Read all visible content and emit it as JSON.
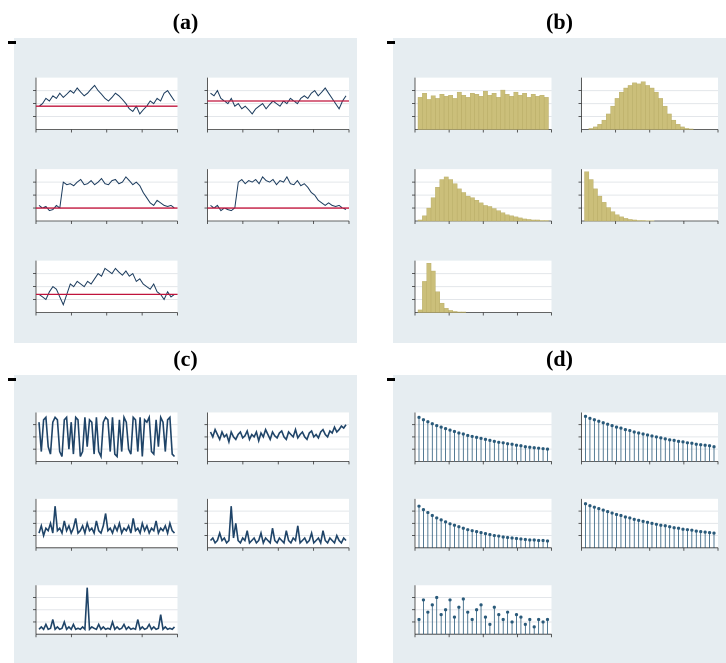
{
  "chart_data": [
    {
      "title": "(a)",
      "type": "line",
      "color": "#1a3a5c",
      "reference_color": "#c0143c",
      "ylim": [
        0,
        1
      ],
      "yticks": [
        0.25,
        0.5,
        0.75
      ],
      "grid": true,
      "series": [
        {
          "reference": 0.45,
          "values": [
            0.45,
            0.5,
            0.6,
            0.55,
            0.65,
            0.6,
            0.7,
            0.62,
            0.68,
            0.75,
            0.7,
            0.8,
            0.72,
            0.65,
            0.7,
            0.78,
            0.85,
            0.75,
            0.68,
            0.6,
            0.55,
            0.62,
            0.7,
            0.65,
            0.58,
            0.5,
            0.4,
            0.35,
            0.45,
            0.3,
            0.38,
            0.45,
            0.55,
            0.5,
            0.6,
            0.55,
            0.7,
            0.75,
            0.65,
            0.55
          ]
        },
        {
          "reference": 0.55,
          "values": [
            0.7,
            0.65,
            0.75,
            0.6,
            0.55,
            0.5,
            0.6,
            0.45,
            0.5,
            0.4,
            0.45,
            0.38,
            0.3,
            0.4,
            0.45,
            0.5,
            0.4,
            0.48,
            0.55,
            0.5,
            0.45,
            0.55,
            0.5,
            0.6,
            0.55,
            0.5,
            0.6,
            0.65,
            0.6,
            0.7,
            0.75,
            0.65,
            0.72,
            0.8,
            0.7,
            0.6,
            0.5,
            0.4,
            0.55,
            0.65
          ]
        },
        {
          "reference": 0.25,
          "values": [
            0.3,
            0.25,
            0.28,
            0.2,
            0.22,
            0.3,
            0.25,
            0.75,
            0.7,
            0.72,
            0.68,
            0.75,
            0.8,
            0.7,
            0.72,
            0.78,
            0.7,
            0.75,
            0.82,
            0.72,
            0.7,
            0.78,
            0.8,
            0.72,
            0.75,
            0.85,
            0.78,
            0.7,
            0.75,
            0.68,
            0.55,
            0.45,
            0.35,
            0.3,
            0.4,
            0.35,
            0.3,
            0.28,
            0.3,
            0.25
          ]
        },
        {
          "reference": 0.25,
          "values": [
            0.3,
            0.25,
            0.3,
            0.2,
            0.25,
            0.22,
            0.2,
            0.25,
            0.75,
            0.8,
            0.72,
            0.78,
            0.75,
            0.8,
            0.72,
            0.85,
            0.78,
            0.75,
            0.8,
            0.7,
            0.78,
            0.75,
            0.85,
            0.72,
            0.7,
            0.78,
            0.68,
            0.72,
            0.65,
            0.55,
            0.5,
            0.4,
            0.35,
            0.3,
            0.35,
            0.3,
            0.28,
            0.3,
            0.25,
            0.22
          ]
        },
        {
          "reference": 0.35,
          "values": [
            0.35,
            0.3,
            0.25,
            0.4,
            0.5,
            0.45,
            0.3,
            0.15,
            0.35,
            0.55,
            0.5,
            0.6,
            0.55,
            0.5,
            0.6,
            0.55,
            0.65,
            0.75,
            0.7,
            0.85,
            0.8,
            0.75,
            0.85,
            0.78,
            0.72,
            0.8,
            0.7,
            0.75,
            0.6,
            0.65,
            0.55,
            0.5,
            0.45,
            0.55,
            0.4,
            0.35,
            0.25,
            0.4,
            0.3,
            0.35
          ]
        }
      ]
    },
    {
      "title": "(b)",
      "type": "histogram",
      "color": "#cbbf7a",
      "ylim": [
        0,
        100
      ],
      "yticks": [
        25,
        50,
        75
      ],
      "grid": true,
      "series": [
        {
          "values": [
            62,
            70,
            58,
            65,
            60,
            68,
            64,
            66,
            60,
            72,
            66,
            62,
            70,
            68,
            64,
            74,
            66,
            70,
            62,
            76,
            68,
            64,
            72,
            66,
            70,
            62,
            68,
            64,
            66,
            62
          ]
        },
        {
          "values": [
            0,
            2,
            5,
            10,
            18,
            30,
            45,
            60,
            72,
            80,
            85,
            90,
            88,
            92,
            85,
            80,
            72,
            60,
            45,
            30,
            18,
            10,
            5,
            2,
            1,
            0,
            0,
            0,
            0,
            0
          ]
        },
        {
          "values": [
            2,
            10,
            25,
            45,
            65,
            80,
            85,
            80,
            72,
            62,
            55,
            48,
            45,
            40,
            35,
            30,
            28,
            24,
            20,
            16,
            12,
            10,
            8,
            6,
            4,
            3,
            2,
            2,
            1,
            1
          ]
        },
        {
          "values": [
            95,
            80,
            62,
            48,
            36,
            26,
            18,
            12,
            8,
            5,
            3,
            2,
            1,
            1,
            0.5,
            0.5,
            0,
            0,
            0,
            0,
            0,
            0,
            0,
            0,
            0,
            0,
            0,
            0,
            0,
            0
          ]
        },
        {
          "values": [
            5,
            60,
            95,
            80,
            40,
            18,
            8,
            4,
            2,
            1,
            1,
            0,
            0,
            0,
            0,
            0,
            0,
            0,
            0,
            0,
            0,
            0,
            0,
            0,
            0,
            0,
            0,
            0,
            0,
            0
          ]
        }
      ]
    },
    {
      "title": "(c)",
      "type": "line",
      "color": "#1f4468",
      "ylim": [
        0,
        1
      ],
      "yticks": [
        0.25,
        0.5,
        0.75
      ],
      "grid": true,
      "series": [
        {
          "values": [
            0.8,
            0.2,
            0.85,
            0.9,
            0.3,
            0.15,
            0.8,
            0.9,
            0.85,
            0.2,
            0.1,
            0.85,
            0.9,
            0.25,
            0.8,
            0.15,
            0.9,
            0.85,
            0.1,
            0.2,
            0.9,
            0.3,
            0.85,
            0.8,
            0.15,
            0.9,
            0.2,
            0.1,
            0.8,
            0.9,
            0.85,
            0.2,
            0.9,
            0.15,
            0.1,
            0.85,
            0.2,
            0.9,
            0.8,
            0.25,
            0.15,
            0.9,
            0.85,
            0.2,
            0.9,
            0.1,
            0.85,
            0.8,
            0.9,
            0.2,
            0.15,
            0.85,
            0.3,
            0.9,
            0.8,
            0.2,
            0.85,
            0.9,
            0.15,
            0.1
          ]
        },
        {
          "values": [
            0.6,
            0.5,
            0.65,
            0.55,
            0.45,
            0.6,
            0.5,
            0.55,
            0.4,
            0.6,
            0.5,
            0.45,
            0.55,
            0.6,
            0.48,
            0.52,
            0.62,
            0.45,
            0.55,
            0.5,
            0.6,
            0.42,
            0.58,
            0.5,
            0.65,
            0.55,
            0.45,
            0.6,
            0.52,
            0.48,
            0.58,
            0.62,
            0.5,
            0.45,
            0.6,
            0.55,
            0.5,
            0.65,
            0.48,
            0.55,
            0.6,
            0.5,
            0.45,
            0.58,
            0.62,
            0.5,
            0.55,
            0.48,
            0.6,
            0.65,
            0.55,
            0.5,
            0.62,
            0.58,
            0.7,
            0.6,
            0.65,
            0.72,
            0.68,
            0.75
          ]
        },
        {
          "values": [
            0.3,
            0.45,
            0.25,
            0.4,
            0.35,
            0.5,
            0.3,
            0.85,
            0.35,
            0.4,
            0.3,
            0.55,
            0.35,
            0.45,
            0.3,
            0.4,
            0.6,
            0.3,
            0.35,
            0.45,
            0.3,
            0.5,
            0.35,
            0.4,
            0.3,
            0.55,
            0.35,
            0.3,
            0.45,
            0.7,
            0.35,
            0.4,
            0.3,
            0.45,
            0.35,
            0.5,
            0.3,
            0.4,
            0.35,
            0.45,
            0.3,
            0.6,
            0.35,
            0.4,
            0.3,
            0.5,
            0.35,
            0.45,
            0.3,
            0.4,
            0.35,
            0.55,
            0.3,
            0.4,
            0.35,
            0.45,
            0.3,
            0.5,
            0.35,
            0.3
          ]
        },
        {
          "values": [
            0.15,
            0.2,
            0.1,
            0.15,
            0.3,
            0.15,
            0.2,
            0.1,
            0.15,
            0.85,
            0.2,
            0.5,
            0.15,
            0.1,
            0.2,
            0.15,
            0.35,
            0.1,
            0.15,
            0.2,
            0.1,
            0.15,
            0.3,
            0.1,
            0.2,
            0.15,
            0.1,
            0.4,
            0.15,
            0.1,
            0.2,
            0.15,
            0.1,
            0.35,
            0.15,
            0.1,
            0.2,
            0.15,
            0.45,
            0.1,
            0.15,
            0.2,
            0.1,
            0.15,
            0.3,
            0.1,
            0.15,
            0.2,
            0.1,
            0.35,
            0.15,
            0.1,
            0.2,
            0.15,
            0.1,
            0.25,
            0.15,
            0.1,
            0.2,
            0.15
          ]
        },
        {
          "values": [
            0.1,
            0.15,
            0.1,
            0.2,
            0.1,
            0.12,
            0.3,
            0.1,
            0.15,
            0.1,
            0.12,
            0.25,
            0.1,
            0.15,
            0.1,
            0.2,
            0.1,
            0.12,
            0.1,
            0.15,
            0.1,
            0.95,
            0.1,
            0.15,
            0.12,
            0.1,
            0.2,
            0.1,
            0.15,
            0.1,
            0.12,
            0.1,
            0.25,
            0.1,
            0.15,
            0.1,
            0.12,
            0.2,
            0.1,
            0.15,
            0.1,
            0.12,
            0.1,
            0.3,
            0.1,
            0.15,
            0.1,
            0.12,
            0.2,
            0.1,
            0.15,
            0.1,
            0.12,
            0.4,
            0.1,
            0.15,
            0.1,
            0.12,
            0.1,
            0.15
          ]
        }
      ]
    },
    {
      "title": "(d)",
      "type": "stem",
      "color": "#2a5a7a",
      "ylim": [
        0,
        1
      ],
      "yticks": [
        0.25,
        0.5,
        0.75
      ],
      "grid": true,
      "series": [
        {
          "values": [
            0.9,
            0.85,
            0.81,
            0.77,
            0.73,
            0.7,
            0.67,
            0.64,
            0.61,
            0.58,
            0.56,
            0.53,
            0.51,
            0.49,
            0.47,
            0.45,
            0.43,
            0.41,
            0.39,
            0.38,
            0.36,
            0.35,
            0.33,
            0.32,
            0.3,
            0.29,
            0.28,
            0.27,
            0.26,
            0.25
          ]
        },
        {
          "values": [
            0.92,
            0.88,
            0.85,
            0.82,
            0.79,
            0.76,
            0.73,
            0.7,
            0.68,
            0.65,
            0.63,
            0.6,
            0.58,
            0.56,
            0.54,
            0.52,
            0.5,
            0.48,
            0.46,
            0.44,
            0.43,
            0.41,
            0.4,
            0.38,
            0.37,
            0.35,
            0.34,
            0.33,
            0.32,
            0.3
          ]
        },
        {
          "values": [
            0.85,
            0.78,
            0.72,
            0.66,
            0.61,
            0.57,
            0.53,
            0.49,
            0.46,
            0.43,
            0.4,
            0.37,
            0.35,
            0.33,
            0.31,
            0.29,
            0.27,
            0.25,
            0.24,
            0.22,
            0.21,
            0.2,
            0.19,
            0.18,
            0.17,
            0.16,
            0.16,
            0.15,
            0.15,
            0.14
          ]
        },
        {
          "values": [
            0.9,
            0.86,
            0.83,
            0.8,
            0.77,
            0.74,
            0.71,
            0.68,
            0.66,
            0.63,
            0.61,
            0.58,
            0.56,
            0.54,
            0.52,
            0.5,
            0.48,
            0.46,
            0.45,
            0.43,
            0.41,
            0.4,
            0.38,
            0.37,
            0.36,
            0.34,
            0.33,
            0.32,
            0.31,
            0.3
          ]
        },
        {
          "values": [
            0.3,
            0.7,
            0.45,
            0.6,
            0.75,
            0.4,
            0.5,
            0.7,
            0.35,
            0.55,
            0.72,
            0.45,
            0.3,
            0.5,
            0.6,
            0.35,
            0.2,
            0.55,
            0.4,
            0.3,
            0.45,
            0.25,
            0.4,
            0.35,
            0.2,
            0.3,
            0.15,
            0.3,
            0.25,
            0.3
          ]
        }
      ]
    }
  ]
}
